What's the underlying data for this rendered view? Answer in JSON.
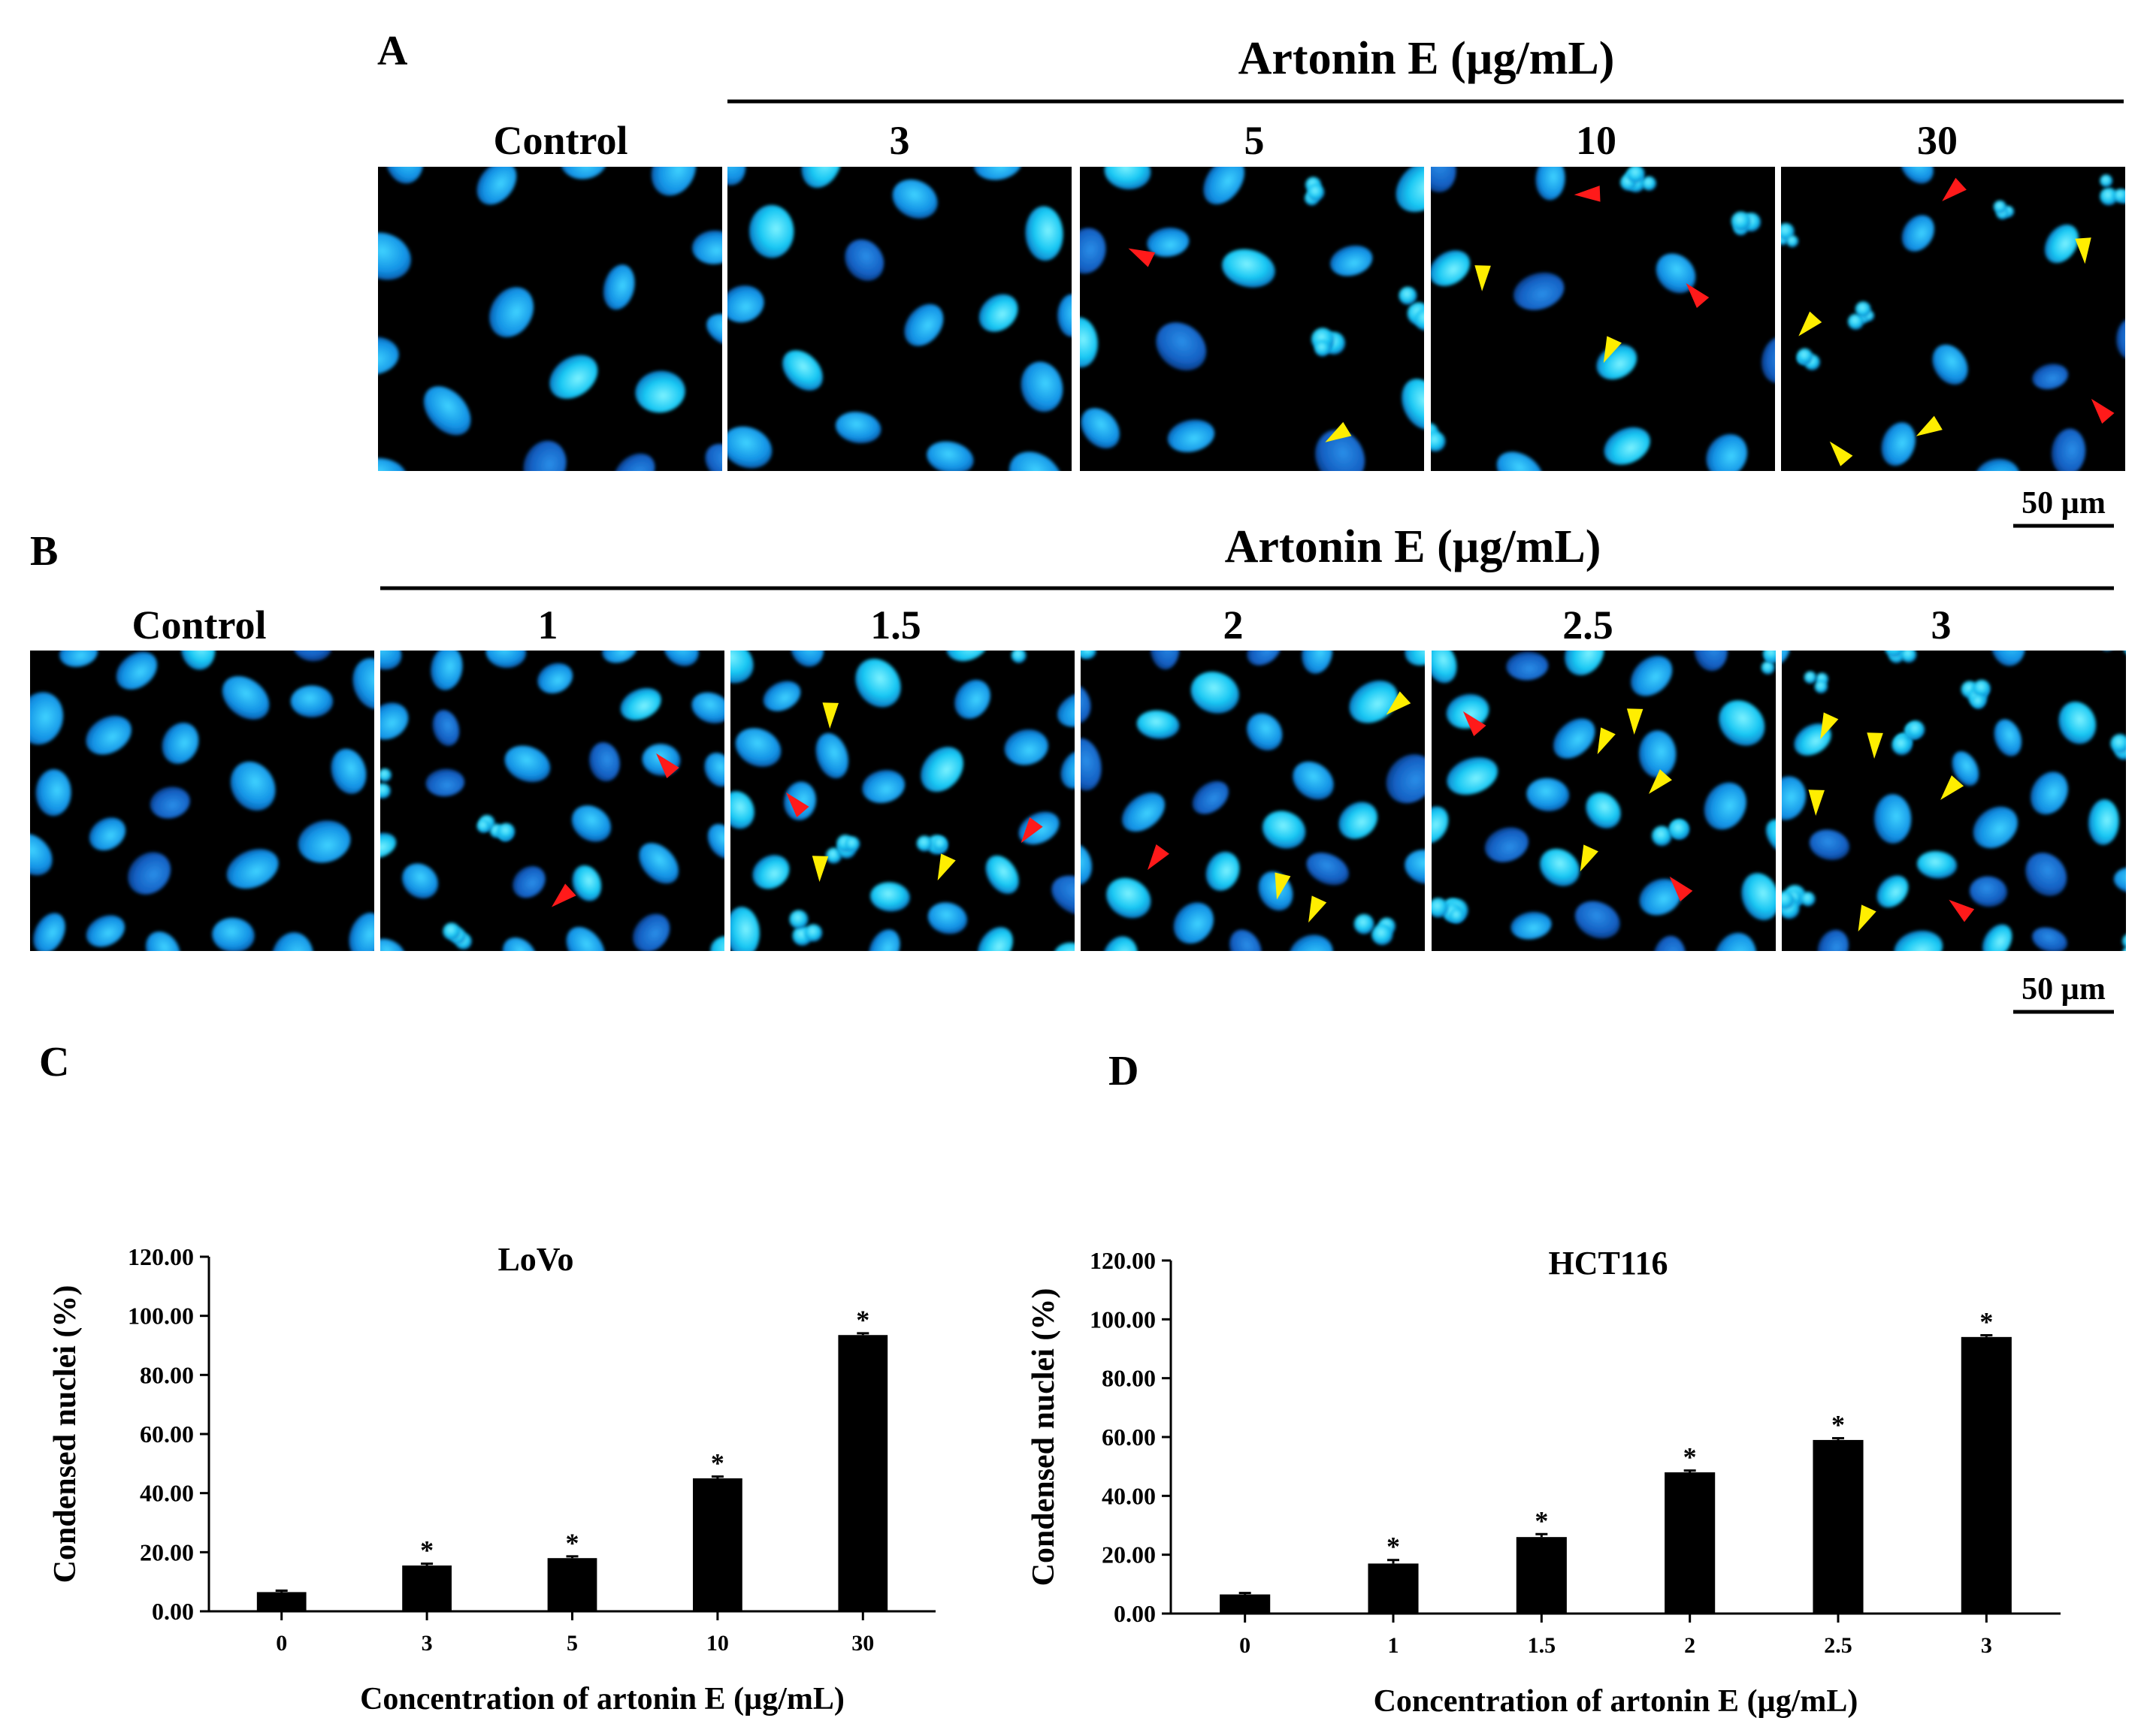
{
  "figure": {
    "panel_labels": [
      "A",
      "B",
      "C",
      "D"
    ],
    "row_a": {
      "treatment_title": "Artonin E (µg/mL)",
      "columns": [
        "Control",
        "3",
        "5",
        "10",
        "30"
      ],
      "scale_bar": "50 µm"
    },
    "row_b": {
      "treatment_title": "Artonin E (µg/mL)",
      "columns": [
        "Control",
        "1",
        "1.5",
        "2",
        "2.5",
        "3"
      ],
      "scale_bar": "50 µm"
    },
    "colors": {
      "nucleus": "#1aa6ff",
      "nucleus_bright": "#18d8ff",
      "background": "#000000",
      "arrow_red": "#ff1a1a",
      "arrow_yellow": "#ffee00",
      "bar": "#000000"
    }
  },
  "chart_data": [
    {
      "type": "bar",
      "panel": "C",
      "title": "LoVo",
      "xlabel": "Concentration of artonin E (µg/mL)",
      "ylabel": "Condensed nuclei (%)",
      "categories": [
        "0",
        "3",
        "5",
        "10",
        "30"
      ],
      "values": [
        6.5,
        15.5,
        18,
        45,
        93.5
      ],
      "errors": [
        0.5,
        0.6,
        0.6,
        0.6,
        0.6
      ],
      "significance": [
        "",
        "*",
        "*",
        "*",
        "*"
      ],
      "ylim": [
        0,
        120
      ],
      "yticks": [
        "0.00",
        "20.00",
        "40.00",
        "60.00",
        "80.00",
        "100.00",
        "120.00"
      ]
    },
    {
      "type": "bar",
      "panel": "D",
      "title": "HCT116",
      "xlabel": "Concentration of artonin E (µg/mL)",
      "ylabel": "Condensed nuclei (%)",
      "categories": [
        "0",
        "1",
        "1.5",
        "2",
        "2.5",
        "3"
      ],
      "values": [
        6.5,
        17,
        26,
        48,
        59,
        94
      ],
      "errors": [
        0.5,
        1.2,
        1.0,
        0.6,
        0.6,
        0.6
      ],
      "significance": [
        "",
        "*",
        "*",
        "*",
        "*",
        "*"
      ],
      "ylim": [
        0,
        120
      ],
      "yticks": [
        "0.00",
        "20.00",
        "40.00",
        "60.00",
        "80.00",
        "100.00",
        "120.00"
      ]
    }
  ]
}
